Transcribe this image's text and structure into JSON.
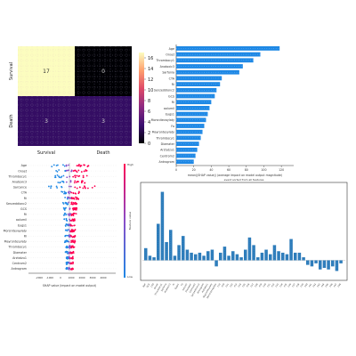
{
  "chart_data": [
    {
      "type": "heatmap",
      "row_labels": [
        "Survival",
        "Death"
      ],
      "col_labels": [
        "Survival",
        "Death"
      ],
      "values": [
        [
          17,
          0
        ],
        [
          3,
          3
        ]
      ],
      "colorbar_ticks": [
        0,
        2,
        4,
        6,
        8,
        10,
        12,
        14,
        16
      ],
      "vmin": 0,
      "vmax": 17
    },
    {
      "type": "bar",
      "orientation": "horizontal",
      "color": "#1e88e5",
      "xlabel": "mean(|SHAP value|) (average impact on model output magnitude)",
      "xticks": [
        0,
        20,
        40,
        60,
        80,
        100,
        120
      ],
      "xlim": [
        0,
        130
      ],
      "categories": [
        "Age",
        "Onset",
        "Thrombocy1",
        "Anatoxic3",
        "Sarfonia",
        "CTA",
        "Ri",
        "Senzeddionc2",
        "GCS",
        "Ri",
        "aolumil",
        "Eygs1",
        "Morsnitevaylaty",
        "Fo",
        "Mayrontesylaty",
        "Thrombocy1",
        "Diamater",
        "Arztatzu1",
        "Centrom2",
        "Antrogrom"
      ],
      "values": [
        118,
        96,
        88,
        76,
        72,
        52,
        50,
        46,
        44,
        40,
        38,
        36,
        34,
        32,
        30,
        28,
        26,
        24,
        22,
        20
      ]
    },
    {
      "type": "scatter",
      "subtype": "shap-beeswarm",
      "xlabel": "SHAP value (impact on model output)",
      "xticks": [
        "-2000",
        "-1000",
        "0",
        "1000",
        "2000",
        "3000",
        "4000"
      ],
      "colorbar_label": "Feature value",
      "colorbar_high": "High",
      "colorbar_low": "Low",
      "features": [
        "Age",
        "Onset",
        "Thrombocy1",
        "Anatoxic3",
        "Sarcance",
        "CTA",
        "Ri",
        "Senzeddionc2",
        "GCS",
        "Ri",
        "aolumil",
        "Eygs1",
        "Morsnitevaylaty",
        "Ri",
        "Mayrontesylaty",
        "Thrombocy1",
        "Diamater",
        "Arztatzu1",
        "Centrom2",
        "Antrogrom"
      ]
    },
    {
      "type": "bar",
      "color": "#2a7ab9",
      "title": "event sorted from all features",
      "categories": [
        "Age",
        "GCS",
        "CTA",
        "Onset",
        "Thrombocy1",
        "Sarfonia",
        "Anatoxic3",
        "Ri",
        "Eygs1",
        "Fo",
        "aolumil",
        "Diamater",
        "Centrom2",
        "Senzeddionc2",
        "Antrogrom",
        "Arztatzu1",
        "Mayrontesylaty",
        "Morsnitevaylaty",
        "F19",
        "F20",
        "F21",
        "F22",
        "F23",
        "F24",
        "F25",
        "F26",
        "F27",
        "F28",
        "F29",
        "F30",
        "F31",
        "F32",
        "F33",
        "F34",
        "F35",
        "F36",
        "F37",
        "F38",
        "F39",
        "F40",
        "F41",
        "F42",
        "F43",
        "F44",
        "F45",
        "F46",
        "F47",
        "F48"
      ],
      "values": [
        0.08,
        0.03,
        0.02,
        0.24,
        0.45,
        0.12,
        0.2,
        0.03,
        0.1,
        0.16,
        0.07,
        0.05,
        0.04,
        0.05,
        0.03,
        0.06,
        0.07,
        -0.04,
        0.05,
        0.09,
        0.03,
        0.06,
        0.04,
        0.02,
        0.07,
        0.15,
        0.1,
        0.02,
        0.05,
        0.07,
        0.04,
        0.1,
        0.06,
        0.05,
        0.04,
        0.14,
        0.05,
        0.05,
        0.02,
        -0.03,
        -0.04,
        -0.02,
        -0.06,
        -0.05,
        -0.06,
        -0.04,
        -0.07,
        -0.02
      ],
      "ylim": [
        -0.12,
        0.5
      ]
    }
  ]
}
